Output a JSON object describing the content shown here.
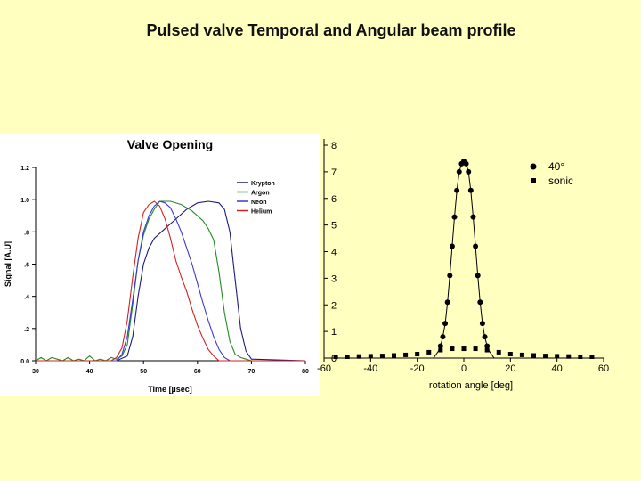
{
  "slide": {
    "title": "Pulsed valve Temporal and Angular beam profile"
  },
  "chart_data": [
    {
      "type": "line",
      "title": "Valve Opening",
      "xlabel": "Time [µsec]",
      "ylabel": "Signal [A.U]",
      "xlim": [
        30,
        80
      ],
      "ylim": [
        0.0,
        1.2
      ],
      "x_ticks": [
        "30",
        "40",
        "50",
        "60",
        "70",
        "80"
      ],
      "y_ticks": [
        "0.0",
        ".2",
        ".4",
        ".6",
        ".8",
        "1.0",
        "1.2"
      ],
      "grid": false,
      "legend": "top-right",
      "series": [
        {
          "name": "Krypton",
          "color": "#1a1a80",
          "x": [
            30,
            45,
            47,
            48,
            49,
            50,
            51,
            52,
            54,
            56,
            58,
            60,
            62,
            64,
            65,
            66,
            67,
            68,
            69,
            70,
            80
          ],
          "y": [
            0.0,
            0.0,
            0.03,
            0.15,
            0.4,
            0.6,
            0.7,
            0.76,
            0.82,
            0.88,
            0.94,
            0.98,
            0.99,
            0.98,
            0.94,
            0.8,
            0.5,
            0.2,
            0.06,
            0.01,
            0.0
          ]
        },
        {
          "name": "Argon",
          "color": "#228b22",
          "x": [
            30,
            31,
            32,
            33,
            34,
            35,
            36,
            37,
            38,
            39,
            40,
            41,
            42,
            43,
            44,
            45,
            46,
            47,
            48,
            49,
            50,
            51,
            52,
            53,
            55,
            57,
            59,
            61,
            62,
            63,
            64,
            65,
            66,
            67,
            68,
            69,
            70,
            80
          ],
          "y": [
            0.0,
            0.02,
            0.0,
            0.02,
            0.01,
            0.0,
            0.02,
            0.0,
            0.01,
            0.0,
            0.03,
            0.0,
            0.01,
            0.0,
            0.02,
            0.01,
            0.03,
            0.1,
            0.35,
            0.62,
            0.78,
            0.88,
            0.94,
            0.99,
            0.99,
            0.97,
            0.93,
            0.87,
            0.82,
            0.75,
            0.55,
            0.3,
            0.12,
            0.04,
            0.02,
            0.01,
            0.0,
            0.0
          ]
        },
        {
          "name": "Neon",
          "color": "#3a3ad0",
          "x": [
            30,
            45,
            46,
            47,
            48,
            49,
            50,
            51,
            52,
            53,
            54,
            55,
            56,
            57,
            58,
            59,
            60,
            61,
            62,
            63,
            64,
            65,
            66,
            80
          ],
          "y": [
            0.0,
            0.0,
            0.04,
            0.15,
            0.38,
            0.62,
            0.8,
            0.9,
            0.96,
            0.99,
            0.98,
            0.95,
            0.88,
            0.8,
            0.7,
            0.6,
            0.48,
            0.36,
            0.25,
            0.15,
            0.07,
            0.02,
            0.0,
            0.0
          ]
        },
        {
          "name": "Helium",
          "color": "#d42020",
          "x": [
            30,
            44,
            45,
            46,
            47,
            48,
            49,
            50,
            51,
            52,
            53,
            54,
            55,
            56,
            57,
            58,
            59,
            60,
            61,
            62,
            63,
            64,
            80
          ],
          "y": [
            0.0,
            0.0,
            0.02,
            0.08,
            0.25,
            0.52,
            0.76,
            0.92,
            0.97,
            0.99,
            0.96,
            0.88,
            0.76,
            0.62,
            0.52,
            0.43,
            0.32,
            0.22,
            0.14,
            0.07,
            0.03,
            0.0,
            0.0
          ]
        }
      ]
    },
    {
      "type": "scatter",
      "xlabel": "rotation angle [deg]",
      "ylabel": "",
      "xlim": [
        -60,
        60
      ],
      "ylim": [
        0,
        8
      ],
      "x_ticks": [
        "-60",
        "-40",
        "-20",
        "0",
        "20",
        "40",
        "60"
      ],
      "y_ticks": [
        "0",
        "1",
        "2",
        "3",
        "4",
        "5",
        "6",
        "7",
        "8"
      ],
      "grid": false,
      "legend": "top-right",
      "series": [
        {
          "name": "40°",
          "marker": "circle",
          "color": "#000000",
          "x": [
            -10,
            -9,
            -8,
            -7,
            -6,
            -5,
            -4,
            -3,
            -2,
            -1,
            0,
            1,
            2,
            3,
            4,
            5,
            6,
            7,
            8,
            9,
            10
          ],
          "y": [
            0.45,
            0.8,
            1.3,
            2.1,
            3.1,
            4.2,
            5.3,
            6.3,
            7.0,
            7.3,
            7.4,
            7.3,
            7.0,
            6.3,
            5.3,
            4.2,
            3.1,
            2.1,
            1.3,
            0.8,
            0.45
          ]
        },
        {
          "name": "sonic",
          "marker": "square",
          "color": "#000000",
          "x": [
            -55,
            -50,
            -45,
            -40,
            -35,
            -30,
            -25,
            -20,
            -15,
            -10,
            -5,
            0,
            5,
            10,
            15,
            20,
            25,
            30,
            35,
            40,
            45,
            50,
            55
          ],
          "y": [
            0.05,
            0.05,
            0.06,
            0.07,
            0.08,
            0.1,
            0.12,
            0.15,
            0.22,
            0.3,
            0.35,
            0.35,
            0.35,
            0.3,
            0.22,
            0.15,
            0.12,
            0.1,
            0.08,
            0.07,
            0.06,
            0.05,
            0.05
          ]
        }
      ],
      "fit_curve": {
        "color": "#000000",
        "x": [
          -15,
          -13,
          -11,
          -10,
          -9,
          -8,
          -7,
          -6,
          -5,
          -4,
          -3,
          -2,
          -1,
          0,
          1,
          2,
          3,
          4,
          5,
          6,
          7,
          8,
          9,
          10,
          11,
          13,
          15
        ],
        "y": [
          -0.2,
          0.0,
          0.25,
          0.45,
          0.8,
          1.3,
          2.1,
          3.1,
          4.2,
          5.3,
          6.3,
          7.0,
          7.3,
          7.4,
          7.3,
          7.0,
          6.3,
          5.3,
          4.2,
          3.1,
          2.1,
          1.3,
          0.8,
          0.45,
          0.25,
          0.0,
          -0.2
        ]
      }
    }
  ]
}
